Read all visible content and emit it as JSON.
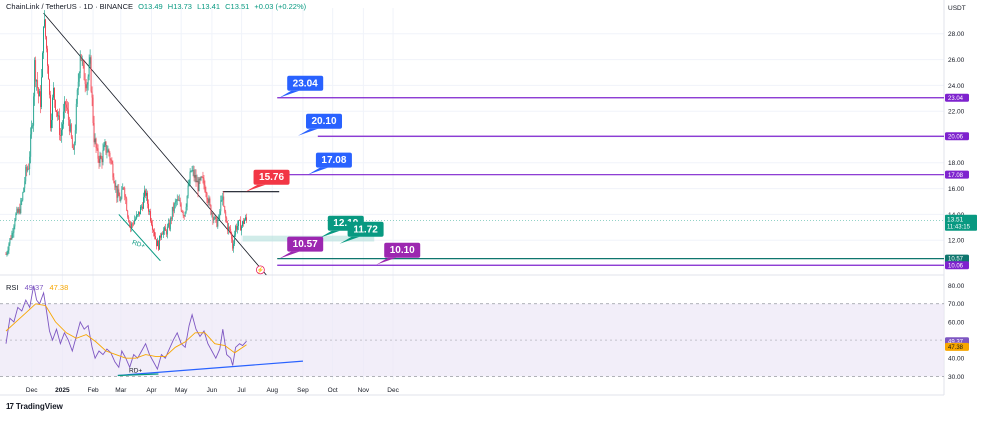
{
  "header": {
    "symbol": "ChainLink / TetherUS · 1D · BINANCE",
    "open": "O13.49",
    "high": "H13.73",
    "low": "L13.41",
    "close": "C13.51",
    "change": "+0.03 (+0.22%)"
  },
  "currency": "USDT",
  "rsi_label": {
    "name": "RSI",
    "value": "49.37",
    "ma_value": "47.38"
  },
  "footer": {
    "brand": "TradingView"
  },
  "chart_data": [
    {
      "type": "candlestick",
      "title": "ChainLink / TetherUS · 1D · BINANCE",
      "ylim": [
        10,
        30
      ],
      "y_ticks": [
        12,
        14,
        16,
        18,
        20,
        22,
        24,
        26,
        28
      ],
      "x_ticks": [
        "Dec",
        "2025",
        "Feb",
        "Mar",
        "Apr",
        "May",
        "Jun",
        "Jul",
        "Aug",
        "Sep",
        "Oct",
        "Nov",
        "Dec"
      ],
      "close_path": [
        [
          "2024-11-05",
          10.9
        ],
        [
          "2024-11-08",
          11.8
        ],
        [
          "2024-11-11",
          12.5
        ],
        [
          "2024-11-14",
          13.8
        ],
        [
          "2024-11-18",
          14.2
        ],
        [
          "2024-11-21",
          15.0
        ],
        [
          "2024-11-25",
          17.2
        ],
        [
          "2024-11-28",
          17.8
        ],
        [
          "2024-12-02",
          21.5
        ],
        [
          "2024-12-04",
          25.6
        ],
        [
          "2024-12-06",
          24.5
        ],
        [
          "2024-12-08",
          23.2
        ],
        [
          "2024-12-10",
          22.8
        ],
        [
          "2024-12-12",
          26.0
        ],
        [
          "2024-12-13",
          29.3
        ],
        [
          "2024-12-15",
          27.8
        ],
        [
          "2024-12-18",
          25.0
        ],
        [
          "2024-12-20",
          21.2
        ],
        [
          "2024-12-23",
          23.5
        ],
        [
          "2024-12-26",
          22.2
        ],
        [
          "2024-12-30",
          20.1
        ],
        [
          "2025-01-04",
          22.6
        ],
        [
          "2025-01-08",
          21.0
        ],
        [
          "2025-01-12",
          18.5
        ],
        [
          "2025-01-16",
          23.2
        ],
        [
          "2025-01-19",
          26.8
        ],
        [
          "2025-01-22",
          25.0
        ],
        [
          "2025-01-26",
          24.3
        ],
        [
          "2025-01-29",
          25.5
        ],
        [
          "2025-02-02",
          20.0
        ],
        [
          "2025-02-05",
          18.6
        ],
        [
          "2025-02-09",
          18.2
        ],
        [
          "2025-02-13",
          19.2
        ],
        [
          "2025-02-17",
          18.8
        ],
        [
          "2025-02-21",
          17.4
        ],
        [
          "2025-02-25",
          15.6
        ],
        [
          "2025-03-01",
          15.1
        ],
        [
          "2025-03-04",
          16.3
        ],
        [
          "2025-03-08",
          14.1
        ],
        [
          "2025-03-11",
          13.0
        ],
        [
          "2025-03-15",
          13.6
        ],
        [
          "2025-03-18",
          13.8
        ],
        [
          "2025-03-22",
          14.6
        ],
        [
          "2025-03-26",
          15.7
        ],
        [
          "2025-03-29",
          14.5
        ],
        [
          "2025-04-02",
          13.2
        ],
        [
          "2025-04-06",
          11.8
        ],
        [
          "2025-04-08",
          11.6
        ],
        [
          "2025-04-11",
          12.8
        ],
        [
          "2025-04-15",
          12.6
        ],
        [
          "2025-04-19",
          13.1
        ],
        [
          "2025-04-22",
          14.2
        ],
        [
          "2025-04-26",
          15.0
        ],
        [
          "2025-04-30",
          14.8
        ],
        [
          "2025-05-04",
          14.0
        ],
        [
          "2025-05-08",
          15.9
        ],
        [
          "2025-05-11",
          17.4
        ],
        [
          "2025-05-14",
          17.0
        ],
        [
          "2025-05-18",
          16.2
        ],
        [
          "2025-05-22",
          16.6
        ],
        [
          "2025-05-26",
          16.0
        ],
        [
          "2025-05-30",
          14.5
        ],
        [
          "2025-06-02",
          14.0
        ],
        [
          "2025-06-05",
          13.3
        ],
        [
          "2025-06-08",
          13.6
        ],
        [
          "2025-06-11",
          15.5
        ],
        [
          "2025-06-14",
          14.0
        ],
        [
          "2025-06-17",
          13.0
        ],
        [
          "2025-06-20",
          12.6
        ],
        [
          "2025-06-22",
          11.5
        ],
        [
          "2025-06-25",
          13.0
        ],
        [
          "2025-06-28",
          13.2
        ],
        [
          "2025-07-01",
          13.1
        ],
        [
          "2025-07-04",
          13.6
        ],
        [
          "2025-07-06",
          13.51
        ]
      ],
      "current_price": 13.51,
      "countdown": "11:43:15",
      "levels": [
        {
          "label": "23.04",
          "value": 23.04,
          "color": "#7e22ce"
        },
        {
          "label": "20.06",
          "value": 20.06,
          "color": "#7e22ce"
        },
        {
          "label": "17.08",
          "value": 17.08,
          "color": "#7e22ce"
        },
        {
          "label": "10.57",
          "value": 10.57,
          "color": "#0f766e"
        },
        {
          "label": "10.06",
          "value": 10.06,
          "color": "#7e22ce"
        }
      ],
      "callouts": [
        {
          "label": "23.04",
          "value": 23.04,
          "date": "2025-08-08",
          "color": "#2962ff"
        },
        {
          "label": "20.10",
          "value": 20.1,
          "date": "2025-08-27",
          "color": "#2962ff"
        },
        {
          "label": "17.08",
          "value": 17.08,
          "date": "2025-09-06",
          "color": "#2962ff"
        },
        {
          "label": "15.76",
          "value": 15.76,
          "date": "2025-07-05",
          "color": "#f23645"
        },
        {
          "label": "12.19",
          "value": 12.19,
          "date": "2025-09-18",
          "color": "#089981"
        },
        {
          "label": "11.72",
          "value": 11.72,
          "date": "2025-10-08",
          "color": "#089981"
        },
        {
          "label": "10.57",
          "value": 10.57,
          "date": "2025-08-08",
          "color": "#9c27b0"
        },
        {
          "label": "10.10",
          "value": 10.1,
          "date": "2025-11-14",
          "color": "#9c27b0"
        }
      ],
      "trendline": {
        "from": [
          "2024-12-13",
          29.6
        ],
        "to": [
          "2025-07-26",
          9.3
        ]
      },
      "resistance_segment": {
        "from": [
          "2025-06-12",
          15.76
        ],
        "to": [
          "2025-08-08",
          15.76
        ]
      },
      "zone": {
        "from": "2025-07-02",
        "to": "2025-11-12",
        "low": 11.9,
        "high": 12.35
      },
      "divergence_label": "RD+"
    },
    {
      "type": "line",
      "title": "RSI",
      "ylim": [
        28,
        82
      ],
      "y_ticks": [
        30,
        40,
        50,
        60,
        70,
        80
      ],
      "band": [
        30,
        70
      ],
      "midline": 50,
      "series": [
        {
          "name": "RSI",
          "color": "#7e57c2",
          "points": [
            [
              "2024-11-05",
              48
            ],
            [
              "2024-11-09",
              62
            ],
            [
              "2024-11-13",
              60
            ],
            [
              "2024-11-17",
              68
            ],
            [
              "2024-11-21",
              66
            ],
            [
              "2024-11-25",
              72
            ],
            [
              "2024-11-29",
              68
            ],
            [
              "2024-12-03",
              80
            ],
            [
              "2024-12-06",
              72
            ],
            [
              "2024-12-09",
              70
            ],
            [
              "2024-12-13",
              76
            ],
            [
              "2024-12-16",
              66
            ],
            [
              "2024-12-19",
              55
            ],
            [
              "2024-12-22",
              50
            ],
            [
              "2024-12-26",
              56
            ],
            [
              "2024-12-30",
              48
            ],
            [
              "2025-01-03",
              54
            ],
            [
              "2025-01-07",
              50
            ],
            [
              "2025-01-11",
              44
            ],
            [
              "2025-01-15",
              52
            ],
            [
              "2025-01-19",
              60
            ],
            [
              "2025-01-23",
              56
            ],
            [
              "2025-01-27",
              58
            ],
            [
              "2025-01-31",
              46
            ],
            [
              "2025-02-03",
              40
            ],
            [
              "2025-02-07",
              44
            ],
            [
              "2025-02-11",
              42
            ],
            [
              "2025-02-15",
              45
            ],
            [
              "2025-02-19",
              43
            ],
            [
              "2025-02-23",
              38
            ],
            [
              "2025-02-27",
              35
            ],
            [
              "2025-03-02",
              44
            ],
            [
              "2025-03-06",
              40
            ],
            [
              "2025-03-10",
              35
            ],
            [
              "2025-03-14",
              42
            ],
            [
              "2025-03-18",
              40
            ],
            [
              "2025-03-22",
              44
            ],
            [
              "2025-03-26",
              48
            ],
            [
              "2025-03-30",
              42
            ],
            [
              "2025-04-03",
              38
            ],
            [
              "2025-04-07",
              34
            ],
            [
              "2025-04-11",
              42
            ],
            [
              "2025-04-15",
              40
            ],
            [
              "2025-04-19",
              45
            ],
            [
              "2025-04-23",
              50
            ],
            [
              "2025-04-27",
              54
            ],
            [
              "2025-05-01",
              48
            ],
            [
              "2025-05-05",
              46
            ],
            [
              "2025-05-09",
              58
            ],
            [
              "2025-05-12",
              64
            ],
            [
              "2025-05-16",
              56
            ],
            [
              "2025-05-20",
              52
            ],
            [
              "2025-05-24",
              55
            ],
            [
              "2025-05-28",
              48
            ],
            [
              "2025-06-01",
              44
            ],
            [
              "2025-06-05",
              40
            ],
            [
              "2025-06-09",
              45
            ],
            [
              "2025-06-12",
              56
            ],
            [
              "2025-06-16",
              42
            ],
            [
              "2025-06-20",
              40
            ],
            [
              "2025-06-22",
              36
            ],
            [
              "2025-06-25",
              46
            ],
            [
              "2025-06-29",
              48
            ],
            [
              "2025-07-02",
              47
            ],
            [
              "2025-07-06",
              49.37
            ]
          ]
        },
        {
          "name": "RSI-based MA",
          "color": "#f7a600",
          "points": [
            [
              "2024-11-05",
              55
            ],
            [
              "2024-11-15",
              60
            ],
            [
              "2024-11-25",
              65
            ],
            [
              "2024-12-05",
              70
            ],
            [
              "2024-12-15",
              69
            ],
            [
              "2024-12-25",
              60
            ],
            [
              "2025-01-05",
              54
            ],
            [
              "2025-01-15",
              51
            ],
            [
              "2025-01-25",
              53
            ],
            [
              "2025-02-04",
              49
            ],
            [
              "2025-02-14",
              44
            ],
            [
              "2025-02-24",
              42
            ],
            [
              "2025-03-06",
              40
            ],
            [
              "2025-03-16",
              40
            ],
            [
              "2025-03-26",
              42
            ],
            [
              "2025-04-05",
              41
            ],
            [
              "2025-04-15",
              41
            ],
            [
              "2025-04-25",
              46
            ],
            [
              "2025-05-05",
              49
            ],
            [
              "2025-05-15",
              54
            ],
            [
              "2025-05-25",
              54
            ],
            [
              "2025-06-04",
              48
            ],
            [
              "2025-06-14",
              47
            ],
            [
              "2025-06-24",
              43
            ],
            [
              "2025-07-06",
              47.38
            ]
          ]
        }
      ],
      "support_line": {
        "from": [
          "2025-02-26",
          30.5
        ],
        "to": [
          "2025-09-01",
          38.4
        ]
      },
      "divergence_line": {
        "from": [
          "2025-02-26",
          30.5
        ],
        "to": [
          "2025-04-08",
          31.3
        ]
      },
      "divergence_label": "RD+"
    }
  ]
}
